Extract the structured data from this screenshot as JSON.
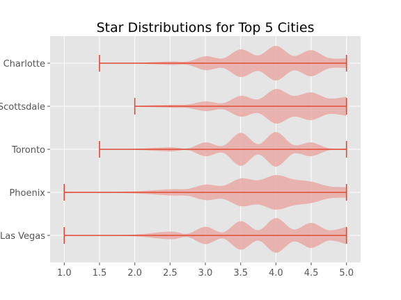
{
  "chart_data": {
    "type": "violin",
    "title": "Star Distributions for Top 5 Cities",
    "orientation": "horizontal",
    "xlim": [
      0.8,
      5.2
    ],
    "xticks": [
      1.0,
      1.5,
      2.0,
      2.5,
      3.0,
      3.5,
      4.0,
      4.5,
      5.0
    ],
    "xtick_labels": [
      "1.0",
      "1.5",
      "2.0",
      "2.5",
      "3.0",
      "3.5",
      "4.0",
      "4.5",
      "5.0"
    ],
    "grid": true,
    "colors": {
      "body": "#e8a29b",
      "line": "#e24a33",
      "background": "#e5e5e5",
      "grid": "#ffffff"
    },
    "categories": [
      "Las Vegas",
      "Phoenix",
      "Toronto",
      "Scottsdale",
      "Charlotte"
    ],
    "series": [
      {
        "category": "Las Vegas",
        "min": 1.0,
        "max": 5.0,
        "density": [
          [
            1.0,
            0.03
          ],
          [
            1.5,
            0.02
          ],
          [
            2.0,
            0.05
          ],
          [
            2.5,
            0.22
          ],
          [
            2.75,
            0.1
          ],
          [
            3.0,
            0.5
          ],
          [
            3.25,
            0.18
          ],
          [
            3.5,
            0.82
          ],
          [
            3.75,
            0.3
          ],
          [
            4.0,
            1.0
          ],
          [
            4.25,
            0.35
          ],
          [
            4.5,
            0.72
          ],
          [
            4.75,
            0.3
          ],
          [
            5.0,
            0.5
          ]
        ]
      },
      {
        "category": "Phoenix",
        "min": 1.0,
        "max": 5.0,
        "density": [
          [
            1.0,
            0.04
          ],
          [
            1.5,
            0.03
          ],
          [
            2.0,
            0.06
          ],
          [
            2.5,
            0.18
          ],
          [
            2.75,
            0.2
          ],
          [
            3.0,
            0.45
          ],
          [
            3.25,
            0.38
          ],
          [
            3.5,
            0.8
          ],
          [
            3.75,
            0.7
          ],
          [
            4.0,
            1.0
          ],
          [
            4.25,
            0.75
          ],
          [
            4.5,
            0.62
          ],
          [
            4.75,
            0.35
          ],
          [
            5.0,
            0.3
          ]
        ]
      },
      {
        "category": "Toronto",
        "min": 1.5,
        "max": 5.0,
        "density": [
          [
            1.5,
            0.02
          ],
          [
            2.0,
            0.03
          ],
          [
            2.5,
            0.12
          ],
          [
            2.75,
            0.05
          ],
          [
            3.0,
            0.4
          ],
          [
            3.25,
            0.2
          ],
          [
            3.5,
            0.95
          ],
          [
            3.75,
            0.3
          ],
          [
            4.0,
            1.0
          ],
          [
            4.25,
            0.25
          ],
          [
            4.5,
            0.4
          ],
          [
            4.75,
            0.06
          ],
          [
            5.0,
            0.05
          ]
        ]
      },
      {
        "category": "Scottsdale",
        "min": 2.0,
        "max": 5.0,
        "density": [
          [
            2.0,
            0.02
          ],
          [
            2.5,
            0.08
          ],
          [
            2.75,
            0.1
          ],
          [
            3.0,
            0.28
          ],
          [
            3.25,
            0.18
          ],
          [
            3.5,
            0.6
          ],
          [
            3.75,
            0.4
          ],
          [
            4.0,
            1.0
          ],
          [
            4.25,
            0.6
          ],
          [
            4.5,
            0.8
          ],
          [
            4.75,
            0.45
          ],
          [
            5.0,
            0.55
          ]
        ]
      },
      {
        "category": "Charlotte",
        "min": 1.5,
        "max": 5.0,
        "density": [
          [
            1.5,
            0.02
          ],
          [
            2.0,
            0.02
          ],
          [
            2.5,
            0.1
          ],
          [
            2.75,
            0.1
          ],
          [
            3.0,
            0.4
          ],
          [
            3.25,
            0.28
          ],
          [
            3.5,
            0.8
          ],
          [
            3.75,
            0.45
          ],
          [
            4.0,
            1.0
          ],
          [
            4.25,
            0.42
          ],
          [
            4.5,
            0.75
          ],
          [
            4.75,
            0.3
          ],
          [
            5.0,
            0.28
          ]
        ]
      }
    ]
  }
}
